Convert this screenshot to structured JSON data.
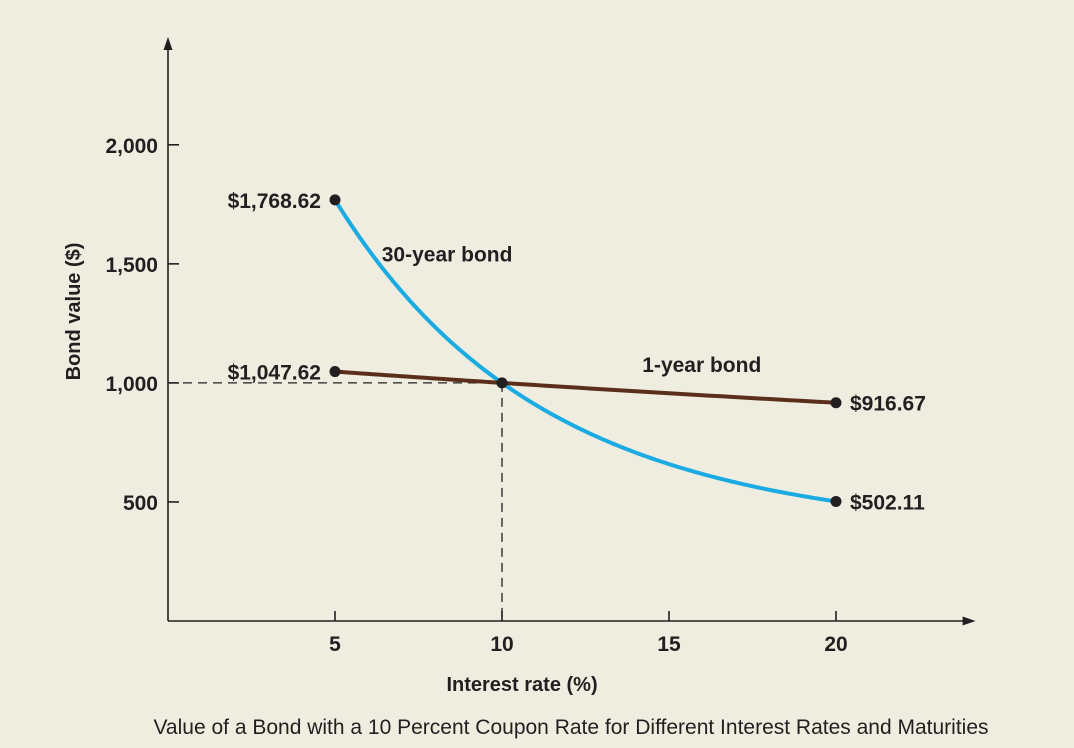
{
  "chart_data": {
    "type": "line",
    "title": "",
    "caption": "Value of a Bond with a 10 Percent Coupon Rate for Different Interest Rates and Maturities",
    "xlabel": "Interest rate (%)",
    "ylabel": "Bond value ($)",
    "xlim": [
      0,
      24
    ],
    "ylim": [
      0,
      2300
    ],
    "xticks": [
      5,
      10,
      15,
      20
    ],
    "xtick_labels": [
      "5",
      "10",
      "15",
      "20"
    ],
    "yticks": [
      500,
      1000,
      1500,
      2000
    ],
    "ytick_labels": [
      "500",
      "1,000",
      "1,500",
      "2,000"
    ],
    "grid": false,
    "series": [
      {
        "name": "30-year bond",
        "color": "#1aabe3",
        "x": [
          5,
          10,
          20
        ],
        "values": [
          1768.62,
          1000,
          502.11
        ],
        "point_labels": [
          "$1,768.62",
          "",
          "$502.11"
        ]
      },
      {
        "name": "1-year bond",
        "color": "#5a2e1b",
        "x": [
          5,
          10,
          20
        ],
        "values": [
          1047.62,
          1000,
          916.67
        ],
        "point_labels": [
          "$1,047.62",
          "",
          "$916.67"
        ]
      }
    ],
    "reference_point": {
      "x": 10,
      "y": 1000
    }
  }
}
